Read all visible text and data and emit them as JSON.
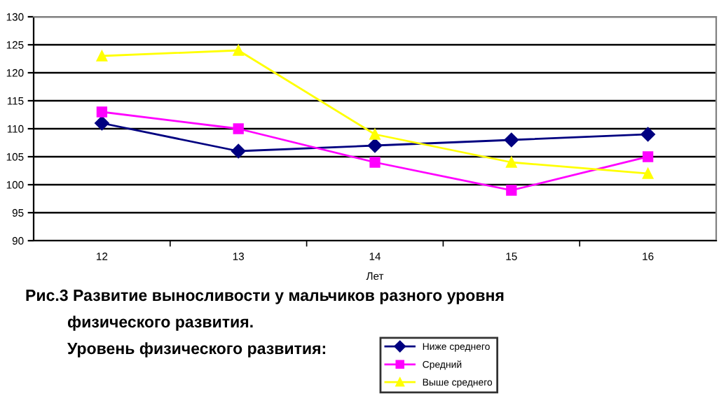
{
  "chart_data": {
    "type": "line",
    "title": "Рис.3 Развитие выносливости у мальчиков разного уровня",
    "subtitle": "физического развития.",
    "legend_title": "Уровень физического развития:",
    "xlabel": "Лет",
    "categories": [
      "12",
      "13",
      "14",
      "15",
      "16"
    ],
    "series": [
      {
        "name": "Ниже среднего",
        "color": "#000080",
        "marker": "diamond",
        "values": [
          111,
          106,
          107,
          108,
          109
        ]
      },
      {
        "name": "Средний",
        "color": "#ff00ff",
        "marker": "square",
        "values": [
          113,
          110,
          104,
          99,
          105
        ]
      },
      {
        "name": "Выше среднего",
        "color": "#ffff00",
        "marker": "triangle",
        "values": [
          123,
          124,
          109,
          104,
          102
        ]
      }
    ],
    "ylim": [
      90,
      130
    ],
    "yticks": [
      90,
      95,
      100,
      105,
      110,
      115,
      120,
      125,
      130
    ],
    "grid": "y",
    "legend": "bottom"
  }
}
